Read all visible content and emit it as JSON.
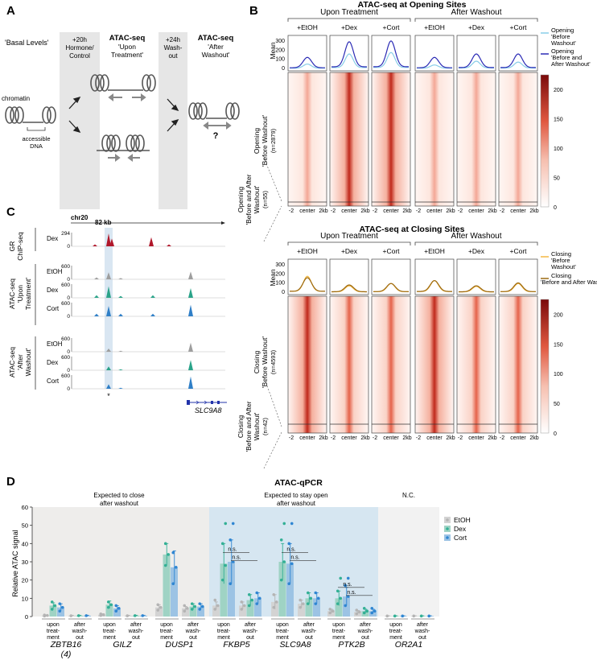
{
  "panels": {
    "A": {
      "letter": "A",
      "basal": "'Basal Levels'",
      "chromatin": "chromatin",
      "accessible": [
        "accessible",
        "DNA"
      ],
      "gray1": [
        "+20h",
        "Hormone/",
        "Control"
      ],
      "gray2": [
        "+24h",
        "Wash-",
        "out"
      ],
      "step1_title": "ATAC-seq",
      "step1_sub": [
        "'Upon",
        "Treatment'"
      ],
      "step2_title": "ATAC-seq",
      "step2_sub": [
        "'After",
        "Washout'"
      ],
      "question": "?"
    },
    "B": {
      "letter": "B",
      "open_title": "ATAC-seq at Opening Sites",
      "close_title": "ATAC-seq at Closing Sites",
      "group_upon": "Upon Treatment",
      "group_after": "After Washout",
      "conditions": [
        "+EtOH",
        "+Dex",
        "+Cort",
        "+EtOH",
        "+Dex",
        "+Cort"
      ],
      "mean_label": "Mean",
      "mean_ticks": [
        "300",
        "200",
        "100",
        "0"
      ],
      "xticks": [
        "-2",
        "center",
        "2kb"
      ],
      "open_row1": [
        "Opening",
        "'Before Washout'",
        "(n=2879)"
      ],
      "open_row2": [
        "Opening",
        "'Before and After",
        "Washout'",
        "(n=55)"
      ],
      "close_row1": [
        "Closing",
        "'Before Washout'",
        "(n=4593)"
      ],
      "close_row2": [
        "Closing",
        "'Before and After",
        "Washout'",
        "(n=42)"
      ],
      "open_legend": [
        [
          "Opening",
          "'Before",
          "Washout'"
        ],
        [
          "Opening",
          "'Before and",
          "After Washout'"
        ]
      ],
      "close_legend": [
        [
          "Closing",
          "'Before",
          "Washout'"
        ],
        [
          "Closing",
          "'Before and After Washout'"
        ]
      ],
      "colorbar_ticks": [
        "200",
        "150",
        "100",
        "50",
        "0"
      ],
      "colors": {
        "open_light": "#88cde8",
        "open_dark": "#2b2bb5",
        "close_light": "#f4b942",
        "close_dark": "#9c6a12",
        "heat_high": "#7a0a0a",
        "heat_low": "#ffffff"
      }
    },
    "C": {
      "letter": "C",
      "chrom": "chr20",
      "scale": "82 kb",
      "gr_label": [
        "GR",
        "ChIP-seq"
      ],
      "upon_label": [
        "ATAC-seq",
        "'Upon",
        "Treatment'"
      ],
      "after_label": [
        "ATAC-seq",
        "'After",
        "Washout'"
      ],
      "tracks": [
        {
          "name": "Dex",
          "scale": "294"
        },
        {
          "name": "EtOH",
          "scale": "600"
        },
        {
          "name": "Dex",
          "scale": "600"
        },
        {
          "name": "Cort",
          "scale": "600"
        },
        {
          "name": "EtOH",
          "scale": "600"
        },
        {
          "name": "Dex",
          "scale": "600"
        },
        {
          "name": "Cort",
          "scale": "600"
        }
      ],
      "zero": "0",
      "asterisk": "*",
      "gene": "SLC9A8"
    },
    "D": {
      "letter": "D",
      "title": "ATAC-qPCR",
      "region_labels": [
        [
          "Expected to close",
          "after washout"
        ],
        [
          "Expected to stay open",
          "after washout"
        ],
        [
          "N.C."
        ]
      ],
      "colors": {
        "region_gray": "#eeedeb",
        "region_blue": "#d6e6f1",
        "region_nc": "#f2f2f2"
      }
    }
  },
  "chart_data": {
    "type": "bar",
    "title": "ATAC-qPCR",
    "ylabel": "Relative ATAC signal",
    "ylim": [
      0,
      60
    ],
    "yticks": [
      0,
      10,
      20,
      30,
      40,
      50,
      60
    ],
    "legend": [
      "EtOH",
      "Dex",
      "Cort"
    ],
    "legend_position": "right",
    "series_colors": [
      "#b4b4b4",
      "#33b095",
      "#2f86d2"
    ],
    "bar_colors": [
      "#d3d3d3",
      "#9fd3c4",
      "#9cc3e4"
    ],
    "groups": [
      "ZBTB16",
      "GILZ",
      "DUSP1",
      "FKBP5",
      "SLC9A8",
      "PTK2B",
      "OR2A1"
    ],
    "group_sub": [
      "(4)",
      "",
      "",
      "",
      "",
      "",
      ""
    ],
    "timepoints": [
      [
        "upon",
        "treat-",
        "ment"
      ],
      [
        "after",
        "wash-",
        "out"
      ]
    ],
    "significance": "n.s.",
    "values": {
      "upon": [
        [
          0.5,
          6,
          5
        ],
        [
          1,
          6.5,
          4.5
        ],
        [
          5,
          34,
          27
        ],
        [
          6,
          29,
          30
        ],
        [
          8,
          30,
          29
        ],
        [
          3,
          10,
          11
        ],
        [
          0.3,
          0.3,
          0.3
        ]
      ],
      "after": [
        [
          0.5,
          0.5,
          0.5
        ],
        [
          0.5,
          0.5,
          0.5
        ],
        [
          4.5,
          5.5,
          5.5
        ],
        [
          6,
          9,
          10
        ],
        [
          7,
          10,
          10
        ],
        [
          2.5,
          3,
          3
        ],
        [
          0.3,
          0.3,
          0.3
        ]
      ]
    },
    "errors": {
      "upon": [
        [
          0.3,
          1.5,
          2
        ],
        [
          0.5,
          2,
          1.5
        ],
        [
          1.5,
          6,
          9
        ],
        [
          2,
          11,
          12
        ],
        [
          4,
          10,
          11
        ],
        [
          1,
          4,
          5
        ],
        [
          0.1,
          0.1,
          0.1
        ]
      ],
      "after": [
        [
          0.2,
          0.2,
          0.2
        ],
        [
          0.2,
          0.2,
          0.2
        ],
        [
          1,
          1.5,
          1.5
        ],
        [
          2,
          3,
          3
        ],
        [
          2,
          3,
          3
        ],
        [
          0.8,
          1,
          1
        ],
        [
          0.1,
          0.1,
          0.1
        ]
      ]
    },
    "points": {
      "upon": [
        [
          [
            0.3,
            0.6,
            0.8
          ],
          [
            4,
            6,
            8
          ],
          [
            3,
            5,
            7
          ]
        ],
        [
          [
            0.6,
            1,
            1.4
          ],
          [
            5,
            6.5,
            8
          ],
          [
            3,
            4.5,
            6
          ]
        ],
        [
          [
            3.5,
            5,
            6.5
          ],
          [
            28,
            34,
            40
          ],
          [
            18,
            27,
            35
          ]
        ],
        [
          [
            4,
            6,
            9
          ],
          [
            20,
            28,
            40,
            51
          ],
          [
            18,
            30,
            42,
            51
          ]
        ],
        [
          [
            5,
            8,
            12
          ],
          [
            20,
            30,
            42,
            51
          ],
          [
            18,
            29,
            40,
            51
          ]
        ],
        [
          [
            2,
            3,
            4
          ],
          [
            7,
            10,
            14,
            21
          ],
          [
            6,
            11,
            17,
            21
          ]
        ],
        [
          [
            0.3
          ],
          [
            0.3
          ],
          [
            0.3
          ]
        ]
      ],
      "after": [
        [
          [
            0.4
          ],
          [
            0.5
          ],
          [
            0.5
          ]
        ],
        [
          [
            0.4
          ],
          [
            0.5
          ],
          [
            0.5
          ]
        ],
        [
          [
            3,
            4.5,
            6
          ],
          [
            4,
            5.5,
            7
          ],
          [
            4,
            5.5,
            7
          ]
        ],
        [
          [
            4,
            6,
            8
          ],
          [
            6,
            9,
            12
          ],
          [
            7,
            10,
            13
          ]
        ],
        [
          [
            5,
            7,
            9
          ],
          [
            7,
            10,
            13
          ],
          [
            7,
            10,
            13
          ]
        ],
        [
          [
            1.5,
            2.5,
            3.5
          ],
          [
            2,
            3,
            4.5
          ],
          [
            2,
            3,
            4.5
          ]
        ],
        [
          [
            0.3
          ],
          [
            0.3
          ],
          [
            0.3
          ]
        ]
      ]
    },
    "ns_groups": [
      "FKBP5",
      "SLC9A8",
      "PTK2B"
    ]
  }
}
